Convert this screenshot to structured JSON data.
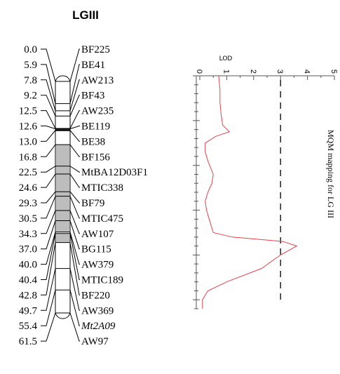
{
  "linkage_group": "LGIII",
  "markers": [
    {
      "pos": "0.0",
      "name": "BF225"
    },
    {
      "pos": "5.9",
      "name": "BE41"
    },
    {
      "pos": "7.8",
      "name": "AW213"
    },
    {
      "pos": "9.2",
      "name": "BF43"
    },
    {
      "pos": "12.5",
      "name": "AW235"
    },
    {
      "pos": "12.6",
      "name": "BE119"
    },
    {
      "pos": "13.0",
      "name": "BE38"
    },
    {
      "pos": "16.8",
      "name": "BF156"
    },
    {
      "pos": "22.5",
      "name": "MtBA12D03F1"
    },
    {
      "pos": "24.6",
      "name": "MTIC338"
    },
    {
      "pos": "29.3",
      "name": "BF79"
    },
    {
      "pos": "30.5",
      "name": "MTIC475"
    },
    {
      "pos": "34.3",
      "name": "AW107"
    },
    {
      "pos": "37.0",
      "name": "BG115"
    },
    {
      "pos": "40.0",
      "name": "AW379"
    },
    {
      "pos": "40.4",
      "name": "MTIC189"
    },
    {
      "pos": "42.8",
      "name": "BF220"
    },
    {
      "pos": "49.7",
      "name": "AW369"
    },
    {
      "pos": "55.4",
      "name": "Mt2A09",
      "italic": true
    },
    {
      "pos": "61.5",
      "name": "AW97"
    }
  ],
  "lod_panel": {
    "axis_title": "LOD",
    "ticks": [
      "0",
      "1",
      "2",
      "3",
      "4",
      "5"
    ],
    "threshold": 3,
    "side_title": "MQM mapping for LG III",
    "curve_color": "#e8404a",
    "profile": [
      {
        "cM": 0,
        "lod": 0.7
      },
      {
        "cM": 3,
        "lod": 0.75
      },
      {
        "cM": 6,
        "lod": 0.75
      },
      {
        "cM": 9,
        "lod": 0.8
      },
      {
        "cM": 11,
        "lod": 0.85
      },
      {
        "cM": 12.5,
        "lod": 1.1
      },
      {
        "cM": 13.5,
        "lod": 0.6
      },
      {
        "cM": 15,
        "lod": 0.2
      },
      {
        "cM": 17,
        "lod": 0.2
      },
      {
        "cM": 19,
        "lod": 0.3
      },
      {
        "cM": 22,
        "lod": 0.5
      },
      {
        "cM": 24,
        "lod": 0.45
      },
      {
        "cM": 26,
        "lod": 0.3
      },
      {
        "cM": 28,
        "lod": 0.2
      },
      {
        "cM": 30,
        "lod": 0.25
      },
      {
        "cM": 32,
        "lod": 0.35
      },
      {
        "cM": 34,
        "lod": 0.45
      },
      {
        "cM": 35,
        "lod": 0.5
      },
      {
        "cM": 36,
        "lod": 1.2
      },
      {
        "cM": 37,
        "lod": 3.1
      },
      {
        "cM": 38,
        "lod": 3.6
      },
      {
        "cM": 40,
        "lod": 3.0
      },
      {
        "cM": 43,
        "lod": 2.3
      },
      {
        "cM": 46,
        "lod": 1.0
      },
      {
        "cM": 48,
        "lod": 0.3
      },
      {
        "cM": 50,
        "lod": 0.1
      },
      {
        "cM": 52,
        "lod": 0.1
      }
    ]
  }
}
